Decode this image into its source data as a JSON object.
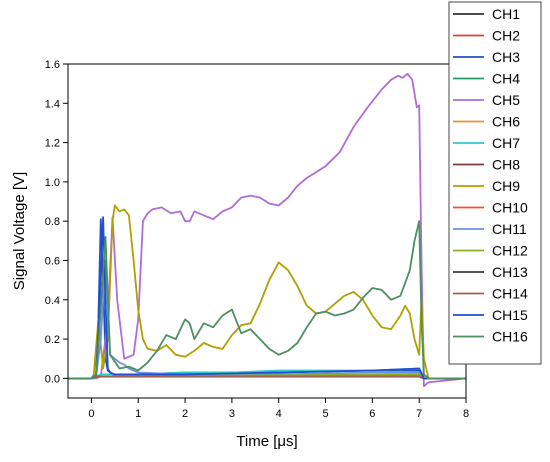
{
  "chart_data": {
    "type": "line",
    "xlabel": "Time [μs]",
    "ylabel": "Signal Voltage [V]",
    "xlim": [
      -0.5,
      8
    ],
    "ylim": [
      -0.1,
      1.6
    ],
    "xticks": [
      0,
      1,
      2,
      3,
      4,
      5,
      6,
      7,
      8
    ],
    "xtick_labels": [
      "0",
      "1",
      "2",
      "3",
      "4",
      "5",
      "6",
      "7",
      "8"
    ],
    "yticks": [
      0.0,
      0.2,
      0.4,
      0.6,
      0.8,
      1.0,
      1.2,
      1.4,
      1.6
    ],
    "ytick_labels": [
      "0.0",
      "0.2",
      "0.4",
      "0.6",
      "0.8",
      "1.0",
      "1.2",
      "1.4",
      "1.6"
    ],
    "grid": false,
    "legend_position": "right-outside",
    "series": [
      {
        "name": "CH1",
        "color": "#333333",
        "x": [
          -0.5,
          0.0,
          0.1,
          0.2,
          7.0,
          7.1,
          8.0
        ],
        "y": [
          0.0,
          0.0,
          0.01,
          0.01,
          0.01,
          0.0,
          0.0
        ]
      },
      {
        "name": "CH2",
        "color": "#e03c31",
        "x": [
          -0.5,
          0.0,
          0.1,
          0.2,
          7.0,
          7.1,
          8.0
        ],
        "y": [
          0.0,
          0.0,
          0.01,
          0.01,
          0.01,
          0.0,
          0.0
        ]
      },
      {
        "name": "CH3",
        "color": "#2050c0",
        "x": [
          -0.5,
          0.0,
          0.1,
          0.15,
          0.2,
          0.25,
          0.3,
          0.35,
          0.45,
          0.6,
          1.0,
          2.0,
          4.0,
          6.0,
          7.0,
          7.1,
          8.0
        ],
        "y": [
          0.0,
          0.0,
          0.02,
          0.3,
          0.81,
          0.5,
          0.1,
          0.04,
          0.02,
          0.02,
          0.02,
          0.03,
          0.03,
          0.04,
          0.04,
          0.0,
          0.0
        ]
      },
      {
        "name": "CH4",
        "color": "#2a9a6a",
        "x": [
          -0.5,
          0.0,
          0.1,
          0.2,
          7.0,
          7.1,
          8.0
        ],
        "y": [
          0.0,
          0.0,
          0.01,
          0.01,
          0.02,
          0.0,
          0.0
        ]
      },
      {
        "name": "CH5",
        "color": "#b06cd8",
        "x": [
          -0.5,
          0.0,
          0.1,
          0.2,
          0.35,
          0.45,
          0.55,
          0.7,
          0.9,
          1.0,
          1.1,
          1.2,
          1.3,
          1.5,
          1.7,
          1.9,
          2.0,
          2.1,
          2.2,
          2.4,
          2.6,
          2.8,
          3.0,
          3.2,
          3.4,
          3.6,
          3.8,
          4.0,
          4.2,
          4.4,
          4.6,
          4.8,
          5.0,
          5.3,
          5.6,
          5.9,
          6.2,
          6.4,
          6.55,
          6.65,
          6.75,
          6.85,
          6.95,
          7.0,
          7.05,
          7.1,
          7.2,
          8.0
        ],
        "y": [
          0.0,
          0.0,
          0.0,
          0.01,
          0.3,
          0.82,
          0.4,
          0.1,
          0.12,
          0.3,
          0.8,
          0.84,
          0.86,
          0.87,
          0.84,
          0.85,
          0.8,
          0.8,
          0.85,
          0.83,
          0.81,
          0.85,
          0.87,
          0.92,
          0.93,
          0.92,
          0.89,
          0.88,
          0.92,
          0.98,
          1.02,
          1.05,
          1.08,
          1.15,
          1.28,
          1.38,
          1.47,
          1.52,
          1.54,
          1.53,
          1.55,
          1.52,
          1.38,
          1.39,
          0.6,
          -0.04,
          -0.02,
          0.0
        ]
      },
      {
        "name": "CH6",
        "color": "#e8962c",
        "x": [
          -0.5,
          0.0,
          0.1,
          0.2,
          7.0,
          7.1,
          8.0
        ],
        "y": [
          0.0,
          0.0,
          0.01,
          0.01,
          0.01,
          0.0,
          0.0
        ]
      },
      {
        "name": "CH7",
        "color": "#30c8cc",
        "x": [
          -0.5,
          0.0,
          0.1,
          0.2,
          1.0,
          2.0,
          3.0,
          4.0,
          5.0,
          6.0,
          7.0,
          7.1,
          8.0
        ],
        "y": [
          0.0,
          0.0,
          0.01,
          0.02,
          0.02,
          0.03,
          0.03,
          0.04,
          0.04,
          0.04,
          0.05,
          0.0,
          0.0
        ]
      },
      {
        "name": "CH8",
        "color": "#7a3a3a",
        "x": [
          -0.5,
          0.0,
          0.1,
          0.2,
          7.0,
          7.1,
          8.0
        ],
        "y": [
          0.0,
          0.0,
          0.01,
          0.01,
          0.01,
          0.0,
          0.0
        ]
      },
      {
        "name": "CH9",
        "color": "#b0a000",
        "x": [
          -0.5,
          0.0,
          0.05,
          0.15,
          0.25,
          0.35,
          0.45,
          0.5,
          0.6,
          0.7,
          0.8,
          0.9,
          1.0,
          1.1,
          1.2,
          1.4,
          1.6,
          1.8,
          2.0,
          2.2,
          2.4,
          2.6,
          2.8,
          3.0,
          3.2,
          3.4,
          3.6,
          3.8,
          4.0,
          4.2,
          4.4,
          4.6,
          4.8,
          5.0,
          5.2,
          5.4,
          5.6,
          5.8,
          6.0,
          6.2,
          6.4,
          6.6,
          6.7,
          6.8,
          6.9,
          7.0,
          7.05,
          7.1,
          7.2,
          8.0
        ],
        "y": [
          0.0,
          0.0,
          0.02,
          0.3,
          0.05,
          0.2,
          0.8,
          0.88,
          0.85,
          0.86,
          0.83,
          0.6,
          0.35,
          0.2,
          0.15,
          0.14,
          0.17,
          0.12,
          0.11,
          0.14,
          0.18,
          0.16,
          0.15,
          0.22,
          0.27,
          0.28,
          0.38,
          0.5,
          0.59,
          0.55,
          0.47,
          0.37,
          0.33,
          0.34,
          0.38,
          0.42,
          0.44,
          0.4,
          0.32,
          0.26,
          0.25,
          0.32,
          0.37,
          0.33,
          0.2,
          0.12,
          0.4,
          0.1,
          0.0,
          0.0
        ]
      },
      {
        "name": "CH10",
        "color": "#ff4a2a",
        "x": [
          -0.5,
          0.0,
          0.1,
          0.2,
          7.0,
          7.1,
          8.0
        ],
        "y": [
          0.0,
          0.0,
          0.01,
          0.01,
          0.01,
          0.0,
          0.0
        ]
      },
      {
        "name": "CH11",
        "color": "#7090e0",
        "x": [
          -0.5,
          0.0,
          0.1,
          0.2,
          0.3,
          0.4,
          0.5,
          0.6,
          0.7,
          0.8,
          1.0,
          2.0,
          4.0,
          6.0,
          7.0,
          7.1,
          8.0
        ],
        "y": [
          0.0,
          0.0,
          0.01,
          0.2,
          0.6,
          0.12,
          0.1,
          0.08,
          0.07,
          0.05,
          0.03,
          0.02,
          0.02,
          0.03,
          0.03,
          0.0,
          0.0
        ]
      },
      {
        "name": "CH12",
        "color": "#8ab020",
        "x": [
          -0.5,
          0.0,
          0.1,
          0.2,
          7.0,
          7.1,
          8.0
        ],
        "y": [
          0.0,
          0.0,
          0.01,
          0.01,
          0.02,
          0.0,
          0.0
        ]
      },
      {
        "name": "CH13",
        "color": "#3a3a3a",
        "x": [
          -0.5,
          0.0,
          0.1,
          0.2,
          7.0,
          7.1,
          8.0
        ],
        "y": [
          0.0,
          0.0,
          0.01,
          0.01,
          0.01,
          0.0,
          0.0
        ]
      },
      {
        "name": "CH14",
        "color": "#a06050",
        "x": [
          -0.5,
          0.0,
          0.1,
          0.2,
          7.0,
          7.1,
          8.0
        ],
        "y": [
          0.0,
          0.0,
          0.01,
          0.01,
          0.01,
          0.0,
          0.0
        ]
      },
      {
        "name": "CH15",
        "color": "#1f4fd0",
        "x": [
          -0.5,
          0.0,
          0.1,
          0.2,
          0.25,
          0.3,
          0.35,
          0.4,
          0.5,
          1.0,
          2.0,
          4.0,
          6.0,
          7.0,
          7.1,
          8.0
        ],
        "y": [
          0.0,
          0.0,
          0.02,
          0.5,
          0.82,
          0.4,
          0.05,
          0.03,
          0.02,
          0.02,
          0.02,
          0.03,
          0.04,
          0.05,
          0.0,
          0.0
        ]
      },
      {
        "name": "CH16",
        "color": "#4a9060",
        "x": [
          -0.5,
          0.0,
          0.1,
          0.2,
          0.3,
          0.4,
          0.6,
          0.8,
          1.0,
          1.2,
          1.4,
          1.6,
          1.8,
          2.0,
          2.1,
          2.2,
          2.4,
          2.6,
          2.8,
          3.0,
          3.2,
          3.4,
          3.6,
          3.8,
          4.0,
          4.2,
          4.4,
          4.6,
          4.8,
          5.0,
          5.2,
          5.4,
          5.6,
          5.8,
          6.0,
          6.2,
          6.4,
          6.6,
          6.8,
          6.9,
          7.0,
          7.05,
          7.1,
          7.2,
          8.0
        ],
        "y": [
          0.0,
          0.0,
          0.02,
          0.35,
          0.72,
          0.12,
          0.05,
          0.06,
          0.04,
          0.08,
          0.14,
          0.22,
          0.2,
          0.3,
          0.28,
          0.2,
          0.28,
          0.26,
          0.32,
          0.35,
          0.23,
          0.25,
          0.2,
          0.15,
          0.12,
          0.14,
          0.18,
          0.26,
          0.33,
          0.34,
          0.32,
          0.33,
          0.35,
          0.41,
          0.46,
          0.45,
          0.4,
          0.42,
          0.55,
          0.7,
          0.8,
          0.3,
          0.02,
          0.0,
          0.0
        ]
      }
    ]
  }
}
